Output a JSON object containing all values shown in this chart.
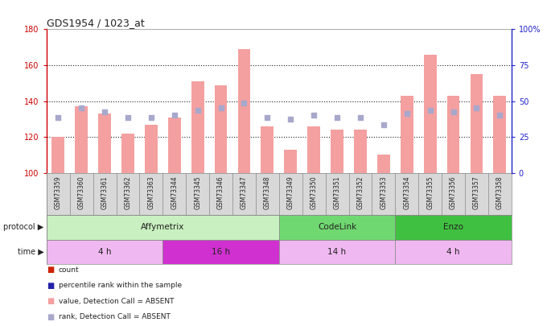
{
  "title": "GDS1954 / 1023_at",
  "samples": [
    "GSM73359",
    "GSM73360",
    "GSM73361",
    "GSM73362",
    "GSM73363",
    "GSM73344",
    "GSM73345",
    "GSM73346",
    "GSM73347",
    "GSM73348",
    "GSM73349",
    "GSM73350",
    "GSM73351",
    "GSM73352",
    "GSM73353",
    "GSM73354",
    "GSM73355",
    "GSM73356",
    "GSM73357",
    "GSM73358"
  ],
  "bar_values": [
    120,
    137,
    133,
    122,
    127,
    131,
    151,
    149,
    169,
    126,
    113,
    126,
    124,
    124,
    110,
    143,
    166,
    143,
    155,
    143
  ],
  "rank_dots": [
    131,
    136,
    134,
    131,
    131,
    132,
    135,
    136,
    139,
    131,
    130,
    132,
    131,
    131,
    127,
    133,
    135,
    134,
    136,
    132
  ],
  "ylim_left": [
    100,
    180
  ],
  "ylim_right": [
    0,
    100
  ],
  "yticks_left": [
    100,
    120,
    140,
    160,
    180
  ],
  "yticks_right": [
    0,
    25,
    50,
    75,
    100
  ],
  "bar_color_absent": "#f4a0a0",
  "dot_color_absent": "#a8a8cc",
  "protocol_groups": [
    {
      "label": "Affymetrix",
      "start": 0,
      "end": 10,
      "color": "#c8f0c0"
    },
    {
      "label": "CodeLink",
      "start": 10,
      "end": 15,
      "color": "#70d870"
    },
    {
      "label": "Enzo",
      "start": 15,
      "end": 20,
      "color": "#40c040"
    }
  ],
  "time_groups": [
    {
      "label": "4 h",
      "start": 0,
      "end": 5,
      "color": "#f0b8f0"
    },
    {
      "label": "16 h",
      "start": 5,
      "end": 10,
      "color": "#d030d0"
    },
    {
      "label": "14 h",
      "start": 10,
      "end": 15,
      "color": "#f0b8f0"
    },
    {
      "label": "4 h",
      "start": 15,
      "end": 20,
      "color": "#f0b8f0"
    }
  ],
  "legend_items": [
    {
      "color": "#cc2200",
      "label": "count"
    },
    {
      "color": "#2222aa",
      "label": "percentile rank within the sample"
    },
    {
      "color": "#f4a0a0",
      "label": "value, Detection Call = ABSENT"
    },
    {
      "color": "#a8a8cc",
      "label": "rank, Detection Call = ABSENT"
    }
  ],
  "left_axis_color": "#cc0000",
  "right_axis_color": "#2222cc",
  "grid_color": "#222222",
  "background_color": "#ffffff",
  "xticklabel_bg": "#d8d8d8"
}
